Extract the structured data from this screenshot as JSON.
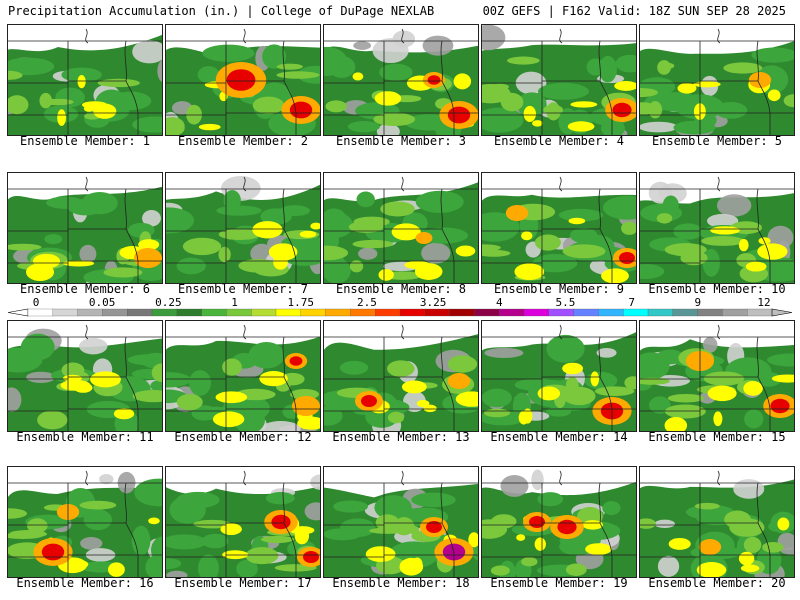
{
  "header": {
    "left_title": "Precipitation Accumulation (in.) | College of DuPage NEXLAB",
    "right_title": "00Z GEFS | F162 Valid: 18Z SUN SEP 28 2025"
  },
  "members": [
    "Ensemble Member: 1",
    "Ensemble Member: 2",
    "Ensemble Member: 3",
    "Ensemble Member: 4",
    "Ensemble Member: 5",
    "Ensemble Member: 6",
    "Ensemble Member: 7",
    "Ensemble Member: 8",
    "Ensemble Member: 9",
    "Ensemble Member: 10",
    "Ensemble Member: 11",
    "Ensemble Member: 12",
    "Ensemble Member: 13",
    "Ensemble Member: 14",
    "Ensemble Member: 15",
    "Ensemble Member: 16",
    "Ensemble Member: 17",
    "Ensemble Member: 18",
    "Ensemble Member: 19",
    "Ensemble Member: 20"
  ],
  "color_scale": {
    "tick_labels": [
      "0",
      "0.05",
      "0.25",
      "1",
      "1.75",
      "2.5",
      "3.25",
      "4",
      "5.5",
      "7",
      "9",
      "12"
    ],
    "colors": [
      "#ffffff",
      "#d6d6d6",
      "#b4b4b4",
      "#969696",
      "#787878",
      "#3c9b3c",
      "#2d7d2d",
      "#4ab43c",
      "#78c83c",
      "#b4dc32",
      "#ffff00",
      "#ffd200",
      "#ffaa00",
      "#ff7800",
      "#ff3c00",
      "#e60000",
      "#c80000",
      "#a00000",
      "#8c0046",
      "#b4008c",
      "#dc00dc",
      "#a050ff",
      "#6482ff",
      "#32b4ff",
      "#00ffff",
      "#32c8c8",
      "#5a9696",
      "#828282",
      "#a0a0a0",
      "#bebebe"
    ]
  },
  "map_style": {
    "none": "#ffffff",
    "trace_light": "#d2d2d2",
    "trace_dark": "#a0a0a0",
    "green_dark": "#2f8a2f",
    "green_mid": "#3ca63c",
    "green_light": "#7cc83c",
    "yellow": "#ffff00",
    "orange": "#ffaa00",
    "red": "#e60000",
    "magenta": "#b4008c",
    "borders": "#222222"
  }
}
